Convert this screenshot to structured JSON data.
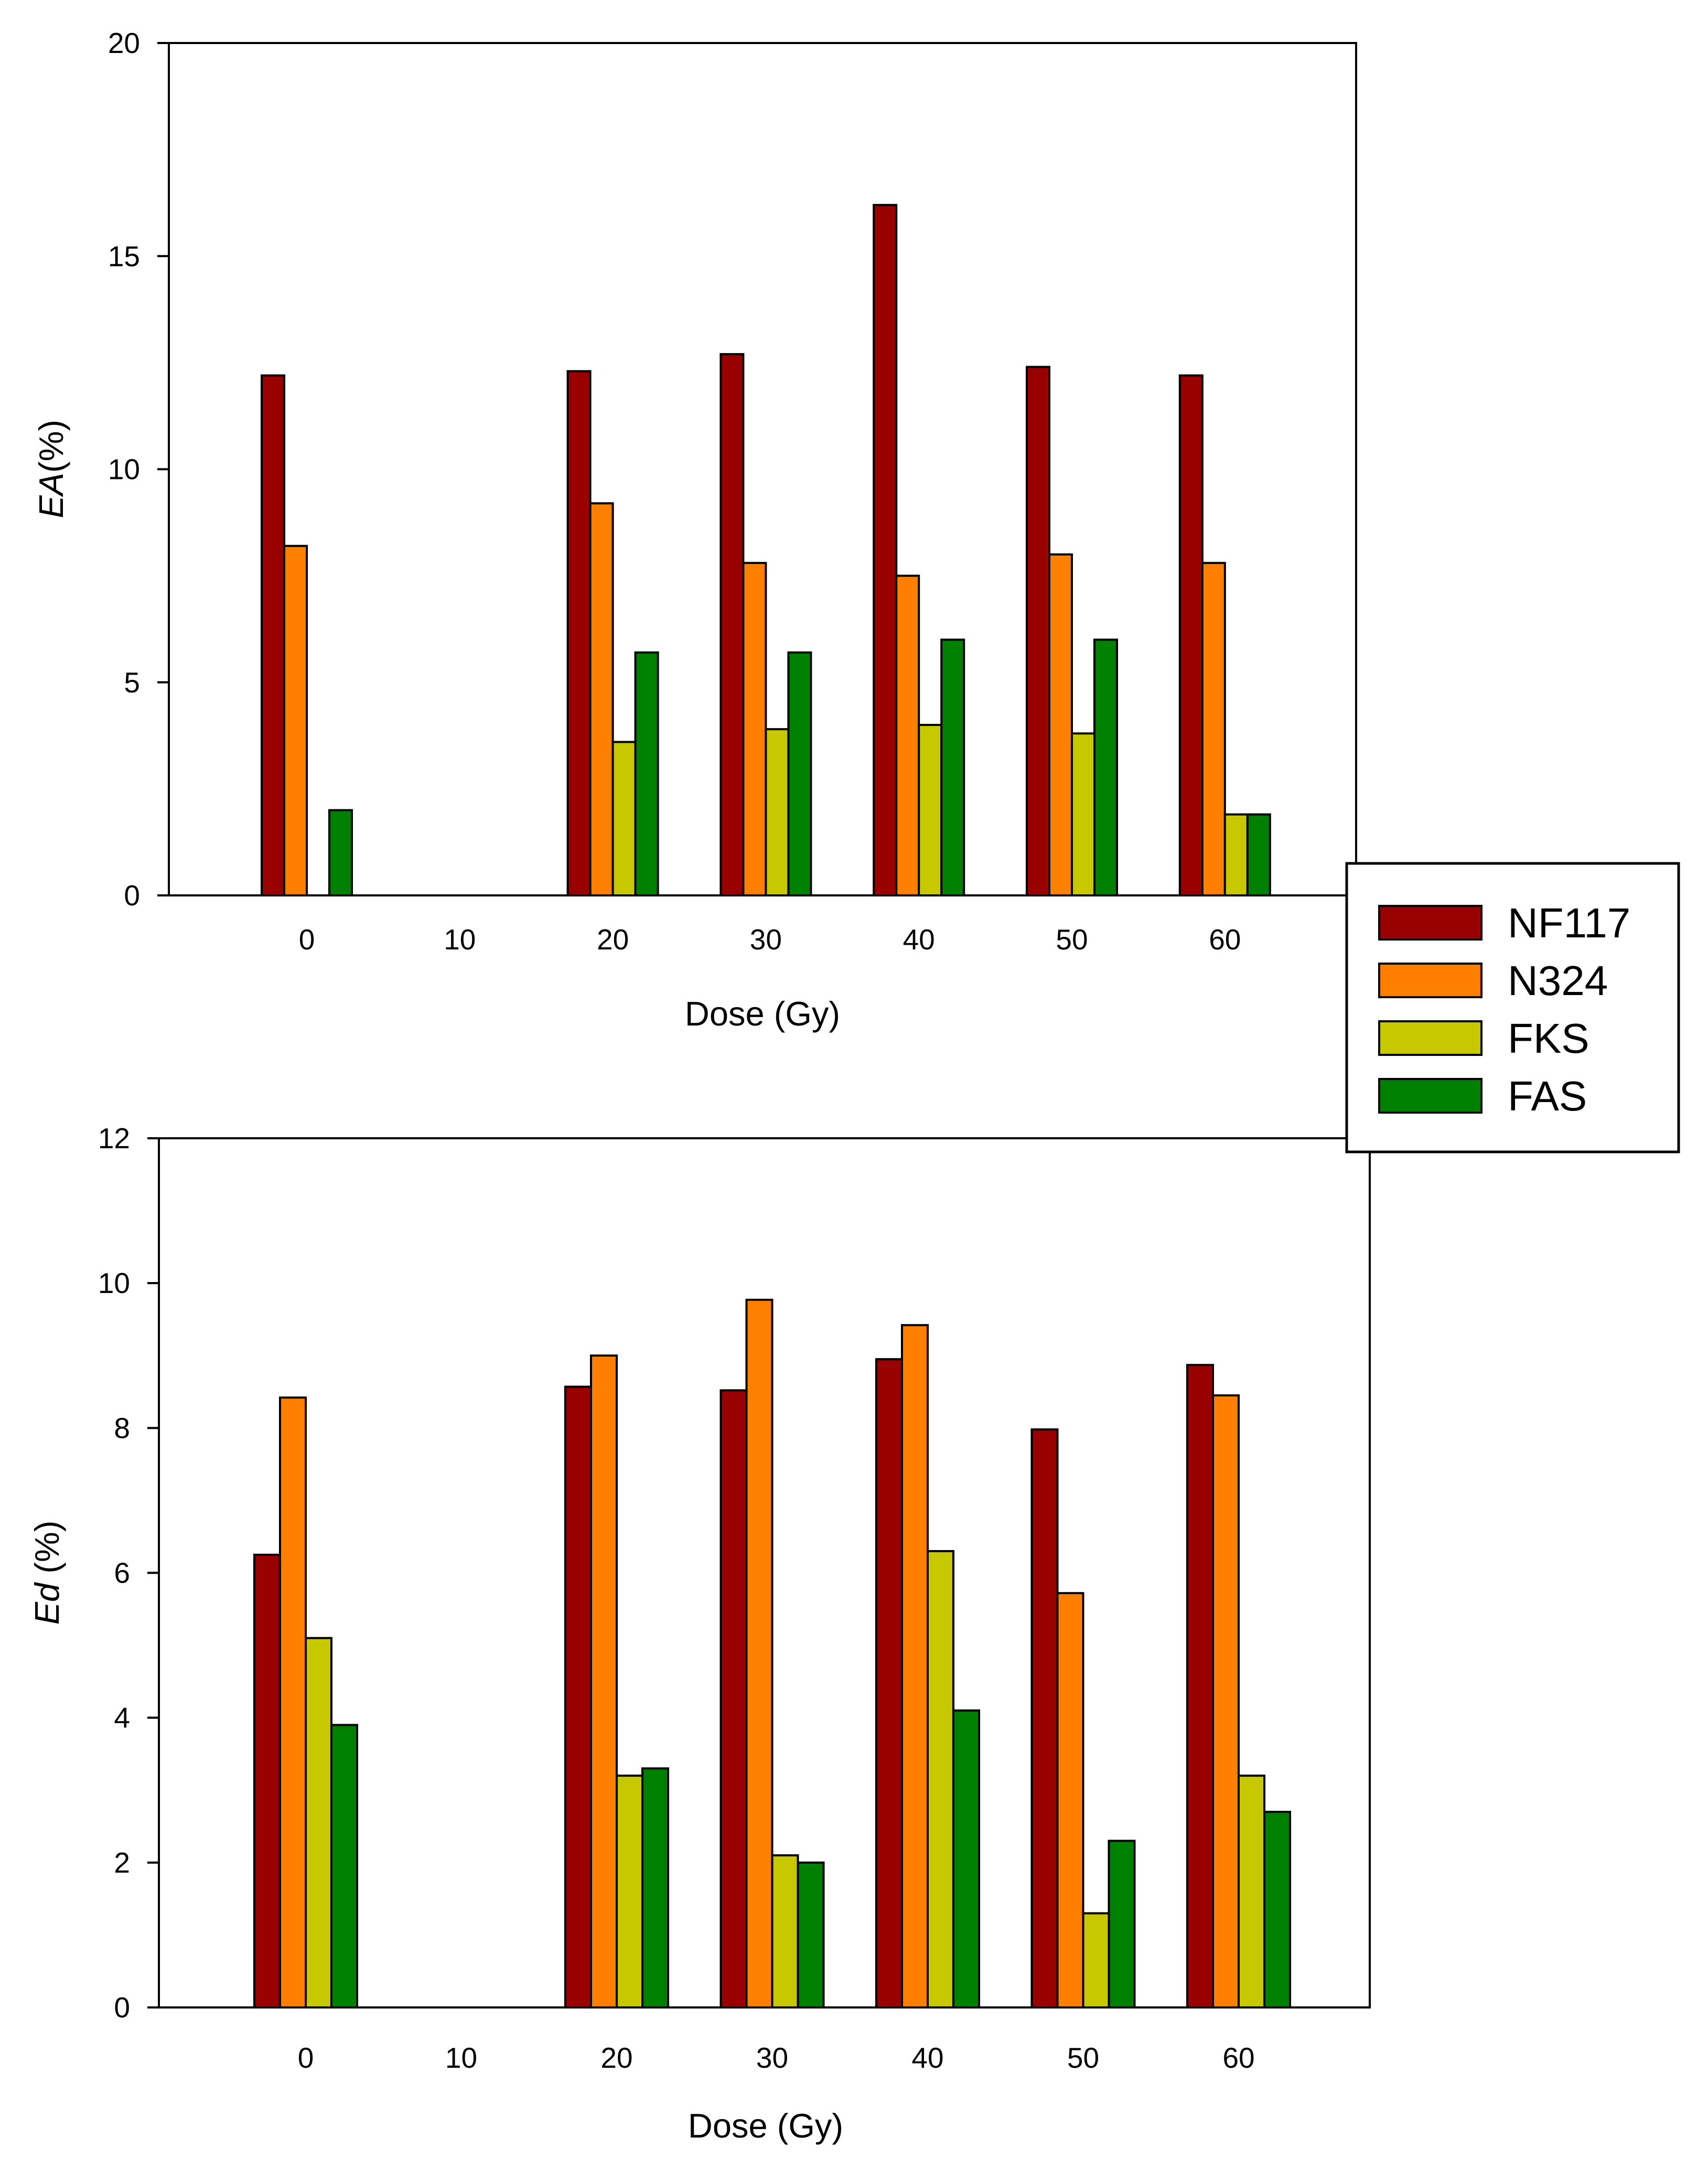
{
  "colors": {
    "NF117": "#990000",
    "N324": "#ff8000",
    "FKS": "#c8c800",
    "FAS": "#008000",
    "axis": "#000000"
  },
  "legend": {
    "entries": [
      "NF117",
      "N324",
      "FKS",
      "FAS"
    ]
  },
  "chart_data": [
    {
      "type": "bar",
      "id": "ea",
      "title": "",
      "xlabel": "Dose (Gy)",
      "ylabel_italic": "EA",
      "ylabel_rest": "(%)",
      "ylim": [
        0,
        20
      ],
      "yticks": [
        0,
        5,
        10,
        15,
        20
      ],
      "categories": [
        "0",
        "10",
        "20",
        "30",
        "40",
        "50",
        "60"
      ],
      "series": [
        {
          "name": "NF117",
          "values": [
            12.2,
            0,
            12.3,
            12.7,
            16.2,
            12.4,
            12.2
          ]
        },
        {
          "name": "N324",
          "values": [
            8.2,
            0,
            9.2,
            7.8,
            7.5,
            8.0,
            7.8
          ]
        },
        {
          "name": "FKS",
          "values": [
            0,
            0,
            3.6,
            3.9,
            4.0,
            3.8,
            1.9
          ]
        },
        {
          "name": "FAS",
          "values": [
            2.0,
            0,
            5.7,
            5.7,
            6.0,
            6.0,
            1.9
          ]
        }
      ]
    },
    {
      "type": "bar",
      "id": "ed",
      "title": "",
      "xlabel": "Dose (Gy)",
      "ylabel_italic": "Ed",
      "ylabel_rest": " (%)",
      "ylim": [
        0,
        12
      ],
      "yticks": [
        0,
        2,
        4,
        6,
        8,
        10,
        12
      ],
      "categories": [
        "0",
        "10",
        "20",
        "30",
        "40",
        "50",
        "60"
      ],
      "series": [
        {
          "name": "NF117",
          "values": [
            6.25,
            0,
            8.57,
            8.52,
            8.95,
            7.98,
            8.87
          ]
        },
        {
          "name": "N324",
          "values": [
            8.42,
            0,
            9.0,
            9.77,
            9.42,
            5.72,
            8.45
          ]
        },
        {
          "name": "FKS",
          "values": [
            5.1,
            0,
            3.2,
            2.1,
            6.3,
            1.3,
            3.2
          ]
        },
        {
          "name": "FAS",
          "values": [
            3.9,
            0,
            3.3,
            2.0,
            4.1,
            2.3,
            2.7
          ]
        }
      ]
    }
  ]
}
